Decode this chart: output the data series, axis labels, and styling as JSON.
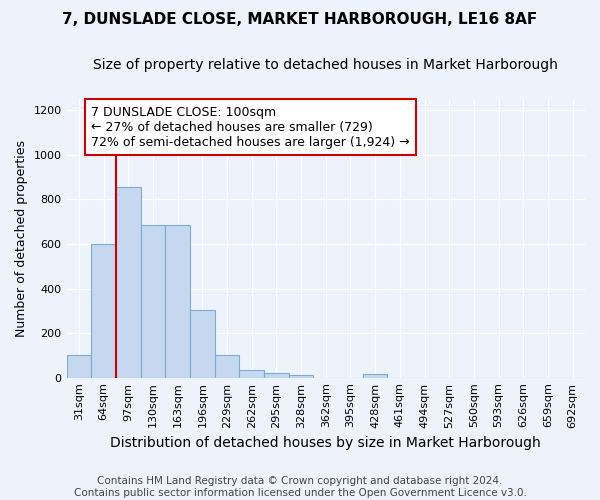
{
  "title": "7, DUNSLADE CLOSE, MARKET HARBOROUGH, LE16 8AF",
  "subtitle": "Size of property relative to detached houses in Market Harborough",
  "xlabel": "Distribution of detached houses by size in Market Harborough",
  "ylabel": "Number of detached properties",
  "categories": [
    "31sqm",
    "64sqm",
    "97sqm",
    "130sqm",
    "163sqm",
    "196sqm",
    "229sqm",
    "262sqm",
    "295sqm",
    "328sqm",
    "362sqm",
    "395sqm",
    "428sqm",
    "461sqm",
    "494sqm",
    "527sqm",
    "560sqm",
    "593sqm",
    "626sqm",
    "659sqm",
    "692sqm"
  ],
  "values": [
    100,
    600,
    855,
    685,
    685,
    305,
    100,
    35,
    20,
    10,
    0,
    0,
    15,
    0,
    0,
    0,
    0,
    0,
    0,
    0,
    0
  ],
  "bar_color": "#c5d8f0",
  "bar_edge_color": "#7aadd4",
  "vline_color": "#cc0000",
  "annotation_line1": "7 DUNSLADE CLOSE: 100sqm",
  "annotation_line2": "← 27% of detached houses are smaller (729)",
  "annotation_line3": "72% of semi-detached houses are larger (1,924) →",
  "annotation_box_color": "#ffffff",
  "annotation_box_edge": "#cc0000",
  "ylim": [
    0,
    1250
  ],
  "yticks": [
    0,
    200,
    400,
    600,
    800,
    1000,
    1200
  ],
  "background_color": "#eef2fb",
  "footer_line1": "Contains HM Land Registry data © Crown copyright and database right 2024.",
  "footer_line2": "Contains public sector information licensed under the Open Government Licence v3.0.",
  "title_fontsize": 11,
  "subtitle_fontsize": 10,
  "xlabel_fontsize": 10,
  "ylabel_fontsize": 9,
  "tick_fontsize": 8,
  "annotation_fontsize": 9,
  "footer_fontsize": 7.5
}
